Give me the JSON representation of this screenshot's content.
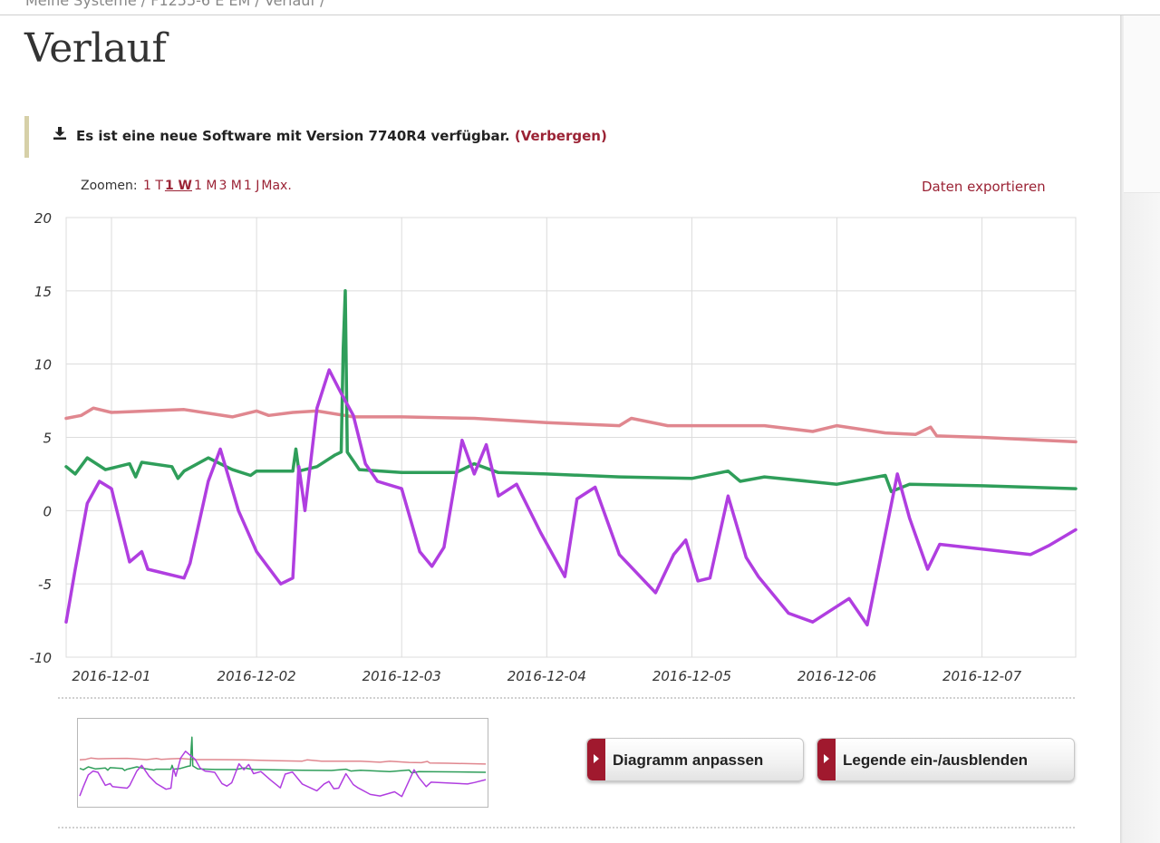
{
  "breadcrumb": "Meine Systeme / F1255-6 E EM / Verlauf /",
  "page_title": "Verlauf",
  "notice": {
    "message": "Es ist eine neue Software mit Version 7740R4 verfügbar.",
    "hide_label": "(Verbergen)"
  },
  "zoom": {
    "label": "Zoomen:",
    "options": [
      "1 T",
      "1 W",
      "1 M",
      "3 M",
      "1 J",
      "Max."
    ],
    "active": "1 W"
  },
  "export_label": "Daten exportieren",
  "buttons": {
    "adjust": "Diagramm anpassen",
    "legend": "Legende ein-/ausblenden"
  },
  "colors": {
    "accent": "#9b2335",
    "pink": "#e0878f",
    "green": "#2f9e5a",
    "purple": "#b03ee0"
  },
  "chart_data": {
    "type": "line",
    "x_ticks": [
      "2016-12-01",
      "2016-12-02",
      "2016-12-03",
      "2016-12-04",
      "2016-12-05",
      "2016-12-06",
      "2016-12-07"
    ],
    "x_range": [
      "2016-11-30T16:30",
      "2016-12-07T15:30"
    ],
    "y_ticks": [
      20,
      15,
      10,
      5,
      0,
      -5,
      -10
    ],
    "ylim": [
      -10,
      20
    ],
    "grid": true,
    "series": [
      {
        "color": "#e0878f",
        "points": [
          [
            "2016-11-30T16:30",
            6.3
          ],
          [
            "2016-11-30T19:00",
            6.5
          ],
          [
            "2016-11-30T21:00",
            7.0
          ],
          [
            "2016-12-01T00:00",
            6.7
          ],
          [
            "2016-12-01T06:00",
            6.8
          ],
          [
            "2016-12-01T12:00",
            6.9
          ],
          [
            "2016-12-01T20:00",
            6.4
          ],
          [
            "2016-12-02T00:00",
            6.8
          ],
          [
            "2016-12-02T02:00",
            6.5
          ],
          [
            "2016-12-02T06:00",
            6.7
          ],
          [
            "2016-12-02T10:00",
            6.8
          ],
          [
            "2016-12-02T16:00",
            6.4
          ],
          [
            "2016-12-03T00:00",
            6.4
          ],
          [
            "2016-12-03T12:00",
            6.3
          ],
          [
            "2016-12-04T00:00",
            6.0
          ],
          [
            "2016-12-04T12:00",
            5.8
          ],
          [
            "2016-12-04T14:00",
            6.3
          ],
          [
            "2016-12-04T20:00",
            5.8
          ],
          [
            "2016-12-05T12:00",
            5.8
          ],
          [
            "2016-12-05T20:00",
            5.4
          ],
          [
            "2016-12-06T00:00",
            5.8
          ],
          [
            "2016-12-06T08:00",
            5.3
          ],
          [
            "2016-12-06T13:00",
            5.2
          ],
          [
            "2016-12-06T15:30",
            5.7
          ],
          [
            "2016-12-06T16:30",
            5.1
          ],
          [
            "2016-12-07T00:00",
            5.0
          ],
          [
            "2016-12-07T15:30",
            4.7
          ]
        ]
      },
      {
        "color": "#2f9e5a",
        "points": [
          [
            "2016-11-30T16:30",
            3.0
          ],
          [
            "2016-11-30T18:00",
            2.5
          ],
          [
            "2016-11-30T20:00",
            3.6
          ],
          [
            "2016-11-30T23:00",
            2.8
          ],
          [
            "2016-12-01T03:00",
            3.2
          ],
          [
            "2016-12-01T04:00",
            2.3
          ],
          [
            "2016-12-01T05:00",
            3.3
          ],
          [
            "2016-12-01T10:00",
            3.0
          ],
          [
            "2016-12-01T11:00",
            2.2
          ],
          [
            "2016-12-01T12:00",
            2.7
          ],
          [
            "2016-12-01T16:00",
            3.6
          ],
          [
            "2016-12-01T20:00",
            2.8
          ],
          [
            "2016-12-01T23:00",
            2.4
          ],
          [
            "2016-12-02T00:00",
            2.7
          ],
          [
            "2016-12-02T06:00",
            2.7
          ],
          [
            "2016-12-02T06:30",
            4.2
          ],
          [
            "2016-12-02T07:00",
            2.7
          ],
          [
            "2016-12-02T10:00",
            3.0
          ],
          [
            "2016-12-02T13:00",
            3.8
          ],
          [
            "2016-12-02T14:00",
            4.0
          ],
          [
            "2016-12-02T14:20",
            11.0
          ],
          [
            "2016-12-02T14:40",
            15.0
          ],
          [
            "2016-12-02T15:00",
            4.0
          ],
          [
            "2016-12-02T17:00",
            2.8
          ],
          [
            "2016-12-03T00:00",
            2.6
          ],
          [
            "2016-12-03T09:00",
            2.6
          ],
          [
            "2016-12-03T12:00",
            3.2
          ],
          [
            "2016-12-03T16:00",
            2.6
          ],
          [
            "2016-12-04T00:00",
            2.5
          ],
          [
            "2016-12-04T12:00",
            2.3
          ],
          [
            "2016-12-05T00:00",
            2.2
          ],
          [
            "2016-12-05T06:00",
            2.7
          ],
          [
            "2016-12-05T08:00",
            2.0
          ],
          [
            "2016-12-05T12:00",
            2.3
          ],
          [
            "2016-12-06T00:00",
            1.8
          ],
          [
            "2016-12-06T08:00",
            2.4
          ],
          [
            "2016-12-06T09:00",
            1.3
          ],
          [
            "2016-12-06T12:00",
            1.8
          ],
          [
            "2016-12-07T00:00",
            1.7
          ],
          [
            "2016-12-07T15:30",
            1.5
          ]
        ]
      },
      {
        "color": "#b03ee0",
        "points": [
          [
            "2016-11-30T16:30",
            -7.6
          ],
          [
            "2016-11-30T18:00",
            -4.0
          ],
          [
            "2016-11-30T20:00",
            0.5
          ],
          [
            "2016-11-30T22:00",
            2.0
          ],
          [
            "2016-12-01T00:00",
            1.5
          ],
          [
            "2016-12-01T03:00",
            -3.5
          ],
          [
            "2016-12-01T05:00",
            -2.8
          ],
          [
            "2016-12-01T06:00",
            -4.0
          ],
          [
            "2016-12-01T12:00",
            -4.6
          ],
          [
            "2016-12-01T13:00",
            -3.6
          ],
          [
            "2016-12-01T16:00",
            2.0
          ],
          [
            "2016-12-01T18:00",
            4.2
          ],
          [
            "2016-12-01T21:00",
            0.0
          ],
          [
            "2016-12-02T00:00",
            -2.8
          ],
          [
            "2016-12-02T04:00",
            -5.0
          ],
          [
            "2016-12-02T06:00",
            -4.6
          ],
          [
            "2016-12-02T07:00",
            3.0
          ],
          [
            "2016-12-02T08:00",
            0.0
          ],
          [
            "2016-12-02T10:00",
            7.0
          ],
          [
            "2016-12-02T12:00",
            9.6
          ],
          [
            "2016-12-02T14:00",
            8.0
          ],
          [
            "2016-12-02T16:00",
            6.5
          ],
          [
            "2016-12-02T18:00",
            3.2
          ],
          [
            "2016-12-02T20:00",
            2.0
          ],
          [
            "2016-12-03T00:00",
            1.5
          ],
          [
            "2016-12-03T03:00",
            -2.8
          ],
          [
            "2016-12-03T05:00",
            -3.8
          ],
          [
            "2016-12-03T07:00",
            -2.5
          ],
          [
            "2016-12-03T10:00",
            4.8
          ],
          [
            "2016-12-03T12:00",
            2.5
          ],
          [
            "2016-12-03T14:00",
            4.5
          ],
          [
            "2016-12-03T16:00",
            1.0
          ],
          [
            "2016-12-03T19:00",
            1.8
          ],
          [
            "2016-12-03T23:00",
            -1.5
          ],
          [
            "2016-12-04T03:00",
            -4.5
          ],
          [
            "2016-12-04T05:00",
            0.8
          ],
          [
            "2016-12-04T08:00",
            1.6
          ],
          [
            "2016-12-04T12:00",
            -3.0
          ],
          [
            "2016-12-04T18:00",
            -5.6
          ],
          [
            "2016-12-04T21:00",
            -3.0
          ],
          [
            "2016-12-04T23:00",
            -2.0
          ],
          [
            "2016-12-05T01:00",
            -4.8
          ],
          [
            "2016-12-05T03:00",
            -4.6
          ],
          [
            "2016-12-05T06:00",
            1.0
          ],
          [
            "2016-12-05T09:00",
            -3.2
          ],
          [
            "2016-12-05T11:00",
            -4.5
          ],
          [
            "2016-12-05T16:00",
            -7.0
          ],
          [
            "2016-12-05T20:00",
            -7.6
          ],
          [
            "2016-12-06T02:00",
            -6.0
          ],
          [
            "2016-12-06T05:00",
            -7.8
          ],
          [
            "2016-12-06T10:00",
            2.5
          ],
          [
            "2016-12-06T12:00",
            -0.5
          ],
          [
            "2016-12-06T15:00",
            -4.0
          ],
          [
            "2016-12-06T17:00",
            -2.3
          ],
          [
            "2016-12-07T08:00",
            -3.0
          ],
          [
            "2016-12-07T11:00",
            -2.4
          ],
          [
            "2016-12-07T15:30",
            -1.3
          ]
        ]
      }
    ]
  }
}
